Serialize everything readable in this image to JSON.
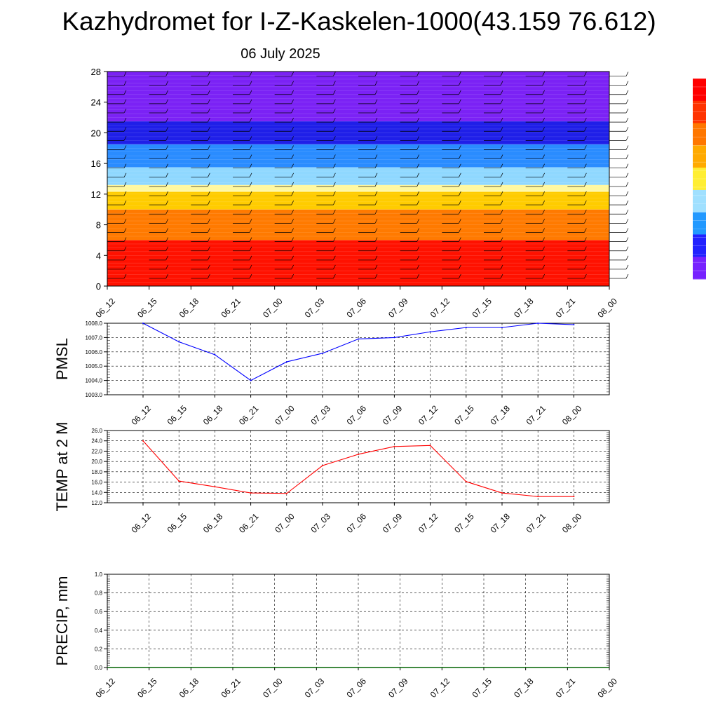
{
  "title": "Kazhydromet for I-Z-Kaskelen-1000(43.159 76.612)",
  "subtitle": "06 July 2025",
  "colors": {
    "pmsl_line": "#0000ff",
    "temp_line": "#ff0000",
    "precip_line": "#006400",
    "colorbar": [
      "#ff0000",
      "#ff3300",
      "#ff7700",
      "#ffaa00",
      "#ffee33",
      "#a0e0ff",
      "#2299ff",
      "#2222ff",
      "#7722ff"
    ]
  },
  "chart_data": [
    {
      "type": "heatmap",
      "name": "vertical-profile",
      "xlabel": "",
      "ylabel": "",
      "ylim": [
        0,
        28
      ],
      "y_ticks": [
        "0",
        "4",
        "8",
        "12",
        "16",
        "20",
        "24",
        "28"
      ],
      "x_ticks": [
        "06_12",
        "06_15",
        "06_18",
        "06_21",
        "07_00",
        "07_03",
        "07_06",
        "07_09",
        "07_12",
        "07_15",
        "07_18",
        "07_21",
        "08_00"
      ],
      "bands": [
        {
          "from": 0,
          "to": 6,
          "color": "#ff1100"
        },
        {
          "from": 6,
          "to": 10,
          "color": "#ff7a00"
        },
        {
          "from": 10,
          "to": 12.3,
          "color": "#ffcc00"
        },
        {
          "from": 12.3,
          "to": 13.2,
          "color": "#fff8a0"
        },
        {
          "from": 13.2,
          "to": 15.5,
          "color": "#8fd8ff"
        },
        {
          "from": 15.5,
          "to": 18.5,
          "color": "#2a8cff"
        },
        {
          "from": 18.5,
          "to": 21.5,
          "color": "#1f1fe8"
        },
        {
          "from": 21.5,
          "to": 28,
          "color": "#7b22f5"
        }
      ],
      "colorbar": "right, unlabeled"
    },
    {
      "type": "line",
      "name": "pmsl",
      "ylabel": "PMSL",
      "ylim": [
        1003.0,
        1008.0
      ],
      "y_ticks": [
        "1003.0",
        "1004.0",
        "1005.0",
        "1006.0",
        "1007.0",
        "1008.0"
      ],
      "categories": [
        "06_12",
        "06_15",
        "06_18",
        "06_21",
        "07_00",
        "07_03",
        "07_06",
        "07_09",
        "07_12",
        "07_15",
        "07_18",
        "07_21",
        "08_00"
      ],
      "values": [
        1008.0,
        1006.7,
        1005.8,
        1004.0,
        1005.3,
        1005.9,
        1006.9,
        1007.0,
        1007.4,
        1007.7,
        1007.7,
        1008.0,
        1007.9
      ],
      "grid": true
    },
    {
      "type": "line",
      "name": "temp",
      "ylabel": "TEMP at 2 M",
      "ylim": [
        12.0,
        26.0
      ],
      "y_ticks": [
        "12.0",
        "14.0",
        "16.0",
        "18.0",
        "20.0",
        "22.0",
        "24.0",
        "26.0"
      ],
      "categories": [
        "06_12",
        "06_15",
        "06_18",
        "06_21",
        "07_00",
        "07_03",
        "07_06",
        "07_09",
        "07_12",
        "07_15",
        "07_18",
        "07_21",
        "08_00"
      ],
      "values": [
        24.0,
        16.2,
        15.1,
        13.9,
        13.8,
        19.2,
        21.4,
        22.9,
        23.1,
        16.1,
        13.9,
        13.2,
        13.2
      ],
      "grid": true
    },
    {
      "type": "line",
      "name": "precip",
      "ylabel": "PRECIP, mm",
      "ylim": [
        0.0,
        1.0
      ],
      "y_ticks": [
        "0.0",
        "0.2",
        "0.4",
        "0.6",
        "0.8",
        "1.0"
      ],
      "categories": [
        "06_12",
        "06_15",
        "06_18",
        "06_21",
        "07_00",
        "07_03",
        "07_06",
        "07_09",
        "07_12",
        "07_15",
        "07_18",
        "07_21",
        "08_00"
      ],
      "values": [
        0,
        0,
        0,
        0,
        0,
        0,
        0,
        0,
        0,
        0,
        0,
        0,
        0
      ],
      "grid": true
    }
  ]
}
